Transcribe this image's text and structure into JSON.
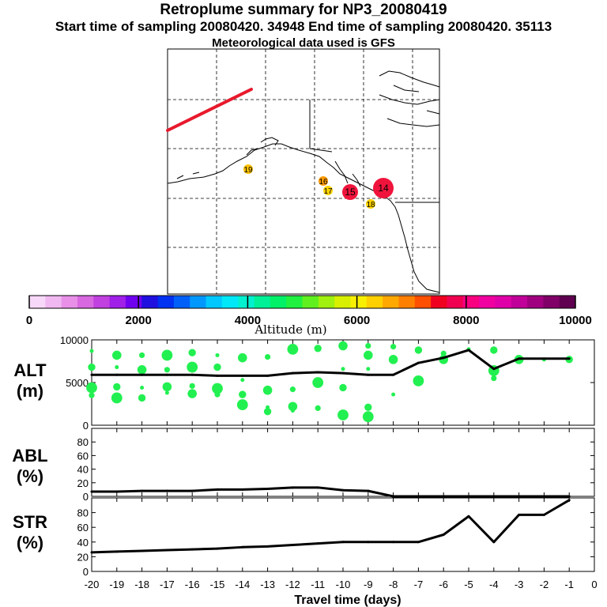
{
  "header": {
    "title": "Retroplume summary for NP3_20080419",
    "sampling_line": "Start time of sampling 20080420. 34948     End time of sampling 20080420. 35113",
    "met_line": "Meteorological data used is GFS"
  },
  "map": {
    "markers": [
      {
        "label": "19",
        "color": "#ffc000",
        "size": "small"
      },
      {
        "label": "16",
        "color": "#ff9a00",
        "size": "small"
      },
      {
        "label": "17",
        "color": "#ffd200",
        "size": "small"
      },
      {
        "label": "15",
        "color": "#f0143c",
        "size": "medium"
      },
      {
        "label": "14",
        "color": "#f0143c",
        "size": "large"
      },
      {
        "label": "18",
        "color": "#ffd200",
        "size": "small"
      }
    ],
    "trajectory_color": "#e8192c"
  },
  "colorbar": {
    "tick_labels": [
      "0",
      "2000",
      "4000",
      "6000",
      "8000",
      "10000"
    ],
    "label": "Altitude (m)",
    "colors": [
      "#f8d8f8",
      "#f0b8f0",
      "#e890e8",
      "#d868e0",
      "#c040e0",
      "#a020e8",
      "#7000f0",
      "#2010e0",
      "#0030f0",
      "#0060f8",
      "#0098ff",
      "#00c8ff",
      "#00e8f8",
      "#00f0d0",
      "#00f098",
      "#00f068",
      "#20f040",
      "#60f020",
      "#a0f010",
      "#d8f000",
      "#f8f000",
      "#ffd000",
      "#ffa800",
      "#ff8000",
      "#ff5000",
      "#f00020",
      "#f00050",
      "#f80080",
      "#f000a0",
      "#e000a8",
      "#c00098",
      "#a00080",
      "#800068",
      "#600050"
    ]
  },
  "panels": {
    "alt": {
      "label": "ALT",
      "unit": "(m)"
    },
    "abl": {
      "label": "ABL",
      "unit": "(%)"
    },
    "str": {
      "label": "STR",
      "unit": "(%)"
    }
  },
  "chart_data": [
    {
      "type": "line",
      "title": "ALT",
      "ylabel": "ALT (m)",
      "ylim": [
        0,
        10000
      ],
      "y_ticks": [
        0,
        5000,
        10000
      ],
      "x": [
        -20,
        -19,
        -18,
        -17,
        -16,
        -15,
        -14,
        -13,
        -12,
        -11,
        -10,
        -9,
        -8,
        -7,
        -6,
        -5,
        -4,
        -3,
        -2,
        -1
      ],
      "values": [
        5900,
        5900,
        5900,
        5900,
        5900,
        5800,
        5800,
        5800,
        6100,
        6200,
        6100,
        5900,
        5900,
        7300,
        7900,
        8800,
        6600,
        7800,
        7800,
        7800
      ],
      "scatter_points": [
        {
          "x": -20,
          "y": 8700
        },
        {
          "x": -20,
          "y": 6800
        },
        {
          "x": -20,
          "y": 4400
        },
        {
          "x": -20,
          "y": 3500
        },
        {
          "x": -19,
          "y": 8200
        },
        {
          "x": -19,
          "y": 6800
        },
        {
          "x": -19,
          "y": 4500
        },
        {
          "x": -19,
          "y": 3200
        },
        {
          "x": -18,
          "y": 8200
        },
        {
          "x": -18,
          "y": 6500
        },
        {
          "x": -18,
          "y": 4400
        },
        {
          "x": -18,
          "y": 3200
        },
        {
          "x": -17,
          "y": 8200
        },
        {
          "x": -17,
          "y": 6500
        },
        {
          "x": -17,
          "y": 4500
        },
        {
          "x": -17,
          "y": 3800
        },
        {
          "x": -16,
          "y": 8500
        },
        {
          "x": -16,
          "y": 6800
        },
        {
          "x": -16,
          "y": 4600
        },
        {
          "x": -16,
          "y": 3700
        },
        {
          "x": -15,
          "y": 8200
        },
        {
          "x": -15,
          "y": 6800
        },
        {
          "x": -15,
          "y": 4300
        },
        {
          "x": -15,
          "y": 3600
        },
        {
          "x": -14,
          "y": 7900
        },
        {
          "x": -14,
          "y": 5300
        },
        {
          "x": -14,
          "y": 3600
        },
        {
          "x": -14,
          "y": 2400
        },
        {
          "x": -13,
          "y": 8000
        },
        {
          "x": -13,
          "y": 4100
        },
        {
          "x": -13,
          "y": 2100
        },
        {
          "x": -13,
          "y": 1600
        },
        {
          "x": -12,
          "y": 8900
        },
        {
          "x": -12,
          "y": 4200
        },
        {
          "x": -12,
          "y": 2200
        },
        {
          "x": -12,
          "y": 1700
        },
        {
          "x": -11,
          "y": 9000
        },
        {
          "x": -11,
          "y": 5000
        },
        {
          "x": -11,
          "y": 2000
        },
        {
          "x": -10,
          "y": 9300
        },
        {
          "x": -10,
          "y": 6600
        },
        {
          "x": -10,
          "y": 4400
        },
        {
          "x": -10,
          "y": 1200
        },
        {
          "x": -9,
          "y": 9300
        },
        {
          "x": -9,
          "y": 8200
        },
        {
          "x": -9,
          "y": 6600
        },
        {
          "x": -9,
          "y": 2100
        },
        {
          "x": -9,
          "y": 1000
        },
        {
          "x": -8,
          "y": 9200
        },
        {
          "x": -8,
          "y": 7700
        },
        {
          "x": -8,
          "y": 3600
        },
        {
          "x": -7,
          "y": 8800
        },
        {
          "x": -7,
          "y": 5200
        },
        {
          "x": -6,
          "y": 8400
        },
        {
          "x": -6,
          "y": 7700
        },
        {
          "x": -5,
          "y": 8900
        },
        {
          "x": -4,
          "y": 8800
        },
        {
          "x": -4,
          "y": 6400
        },
        {
          "x": -4,
          "y": 5500
        },
        {
          "x": -3,
          "y": 7700
        },
        {
          "x": -2,
          "y": 7700
        },
        {
          "x": -1,
          "y": 7700
        }
      ]
    },
    {
      "type": "line",
      "title": "ABL",
      "ylabel": "ABL (%)",
      "ylim": [
        0,
        100
      ],
      "y_ticks": [
        0,
        20,
        40,
        60,
        80
      ],
      "x": [
        -20,
        -19,
        -18,
        -17,
        -16,
        -15,
        -14,
        -13,
        -12,
        -11,
        -10,
        -9,
        -8,
        -7,
        -6,
        -5,
        -4,
        -3,
        -2,
        -1
      ],
      "values": [
        7,
        7,
        8,
        8,
        8,
        10,
        10,
        11,
        13,
        13,
        9,
        8,
        0,
        0,
        0,
        0,
        0,
        0,
        0,
        0
      ]
    },
    {
      "type": "line",
      "title": "STR",
      "ylabel": "STR (%)",
      "xlabel": "Travel time (days)",
      "ylim": [
        0,
        100
      ],
      "y_ticks": [
        0,
        20,
        40,
        60,
        80
      ],
      "xlim": [
        -20,
        0
      ],
      "x_ticks": [
        -20,
        -19,
        -18,
        -17,
        -16,
        -15,
        -14,
        -13,
        -12,
        -11,
        -10,
        -9,
        -8,
        -7,
        -6,
        -5,
        -4,
        -3,
        -2,
        -1,
        0
      ],
      "x": [
        -20,
        -19,
        -18,
        -17,
        -16,
        -15,
        -14,
        -13,
        -12,
        -11,
        -10,
        -9,
        -8,
        -7,
        -6,
        -5,
        -4,
        -3,
        -2,
        -1
      ],
      "values": [
        26,
        27,
        28,
        29,
        30,
        31,
        33,
        34,
        36,
        38,
        40,
        40,
        40,
        40,
        50,
        75,
        40,
        77,
        77,
        97
      ]
    }
  ]
}
